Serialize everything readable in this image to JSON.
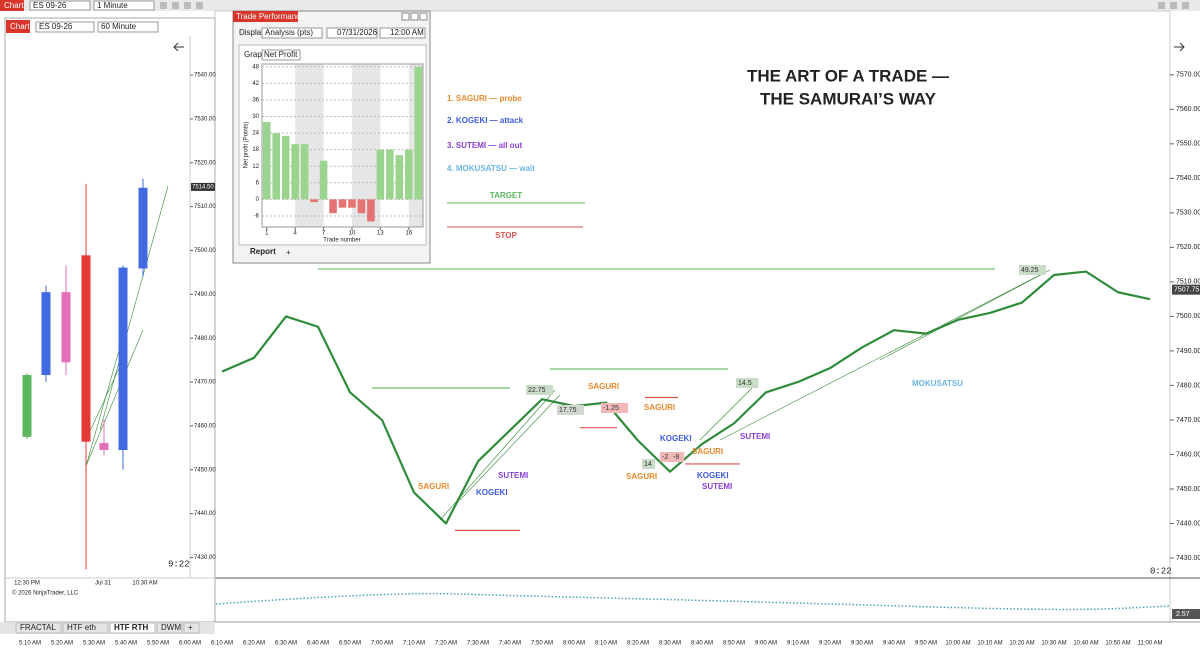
{
  "toolbar": {
    "tab": "Chart",
    "instrument": "ES 09-26",
    "interval": "1 Minute"
  },
  "mini_chart": {
    "tab": "Chart",
    "instrument": "ES 09-26",
    "interval": "60 Minute",
    "ylim": [
      7426,
      7548
    ],
    "yticks": [
      {
        "value": 7540,
        "label": "7540.00"
      },
      {
        "value": 7530,
        "label": "7530.00"
      },
      {
        "value": 7520,
        "label": "7520.00"
      },
      {
        "value": 7510,
        "label": "7510.00"
      },
      {
        "value": 7500,
        "label": "7500.00"
      },
      {
        "value": 7490,
        "label": "7490.00"
      },
      {
        "value": 7480,
        "label": "7480.00"
      },
      {
        "value": 7470,
        "label": "7470.00"
      },
      {
        "value": 7460,
        "label": "7460.00"
      },
      {
        "value": 7450,
        "label": "7450.00"
      },
      {
        "value": 7440,
        "label": "7440.00"
      },
      {
        "value": 7430,
        "label": "7430.00"
      }
    ],
    "candles": [
      {
        "open": 7457.5,
        "high": 7472,
        "low": 7457,
        "close": 7471.6,
        "color": "#5cb85c"
      },
      {
        "open": 7471.6,
        "high": 7492,
        "low": 7470,
        "close": 7490.5,
        "color": "#4169e1"
      },
      {
        "open": 7490.5,
        "high": 7496.6,
        "low": 7471.6,
        "close": 7474.5,
        "color": "#e46fb9"
      },
      {
        "open": 7498.9,
        "high": 7515.2,
        "low": 7427.3,
        "close": 7456.4,
        "color": "#e53935"
      },
      {
        "open": 7456.1,
        "high": 7461.4,
        "low": 7453.4,
        "close": 7454.5,
        "color": "#e46fb9"
      },
      {
        "open": 7454.5,
        "high": 7496.6,
        "low": 7450,
        "close": 7496.1,
        "color": "#4169e1"
      },
      {
        "open": 7495.9,
        "high": 7516.4,
        "low": 7494,
        "close": 7514.3,
        "color": "#4169e1"
      }
    ],
    "last_price": {
      "value": 7514.5,
      "label": "7514.50"
    },
    "time_labels": [
      "12:30 PM",
      "Jul 31",
      "10:30 AM"
    ],
    "clock": "9:22",
    "copyright": "© 2026 NinjaTrader, LLC"
  },
  "tabs": [
    "FRACTAL",
    "HTF eth",
    "HTF RTH",
    "DWM",
    "+"
  ],
  "active_tab": "HTF RTH",
  "time_axis": [
    "5:10 AM",
    "5:20 AM",
    "5:30 AM",
    "5:40 AM",
    "5:50 AM",
    "6:00 AM",
    "6:10 AM",
    "6:20 AM",
    "6:30 AM",
    "6:40 AM",
    "6:50 AM",
    "7:00 AM",
    "7:10 AM",
    "7:20 AM",
    "7:30 AM",
    "7:40 AM",
    "7:50 AM",
    "8:00 AM",
    "8:10 AM",
    "8:20 AM",
    "8:30 AM",
    "8:40 AM",
    "8:50 AM",
    "9:00 AM",
    "9:10 AM",
    "9:20 AM",
    "9:30 AM",
    "9:40 AM",
    "9:50 AM",
    "10:00 AM",
    "10:10 AM",
    "10:20 AM",
    "10:30 AM",
    "10:40 AM",
    "10:50 AM",
    "11:00 AM"
  ],
  "main_chart": {
    "title_lines": [
      "THE ART OF A TRADE —",
      "THE SAMURAI’S WAY"
    ],
    "ylim": [
      7424.2,
      7588.2
    ],
    "yticks": [
      {
        "value": 7570,
        "label": "7570.00"
      },
      {
        "value": 7560,
        "label": "7560.00"
      },
      {
        "value": 7550,
        "label": "7550.00"
      },
      {
        "value": 7540,
        "label": "7540.00"
      },
      {
        "value": 7530,
        "label": "7530.00"
      },
      {
        "value": 7520,
        "label": "7520.00"
      },
      {
        "value": 7510,
        "label": "7510.00"
      },
      {
        "value": 7500,
        "label": "7500.00"
      },
      {
        "value": 7490,
        "label": "7490.00"
      },
      {
        "value": 7480,
        "label": "7480.00"
      },
      {
        "value": 7470,
        "label": "7470.00"
      },
      {
        "value": 7460,
        "label": "7460.00"
      },
      {
        "value": 7450,
        "label": "7450.00"
      },
      {
        "value": 7440,
        "label": "7440.00"
      },
      {
        "value": 7430,
        "label": "7430.00"
      }
    ],
    "price_color": "#2e8b3a",
    "price": [
      null,
      null,
      null,
      null,
      null,
      null,
      7484,
      7488,
      7500,
      7497,
      7478,
      7470,
      7449,
      7440,
      7458,
      7467,
      7476,
      7474,
      7475,
      7464,
      7455,
      7463,
      7469,
      7478,
      7481,
      7485,
      7491,
      7496,
      7495,
      7499,
      7501,
      7504,
      7512,
      7513,
      7507,
      7505
    ],
    "last_price": {
      "value": 7507.75,
      "label": "7507.75"
    },
    "levels": [
      {
        "price": 7513.75,
        "color": "#6abf69"
      },
      {
        "price": 7479.25,
        "color": "#6abf69"
      },
      {
        "price": 7484.75,
        "color": "#6abf69"
      },
      {
        "price": 7438,
        "color": "#d9534f"
      },
      {
        "price": 7467.75,
        "color": "#d9534f"
      },
      {
        "price": 7476.5,
        "color": "#d9534f"
      },
      {
        "price": 7457.25,
        "color": "#d9534f"
      }
    ],
    "legend": [
      {
        "text": "1. SAGURI — probe",
        "color": "#e8892b"
      },
      {
        "text": "2. KOGEKI — attack",
        "color": "#3d5bd9"
      },
      {
        "text": "3. SUTEMI — all out",
        "color": "#8a3fd1"
      },
      {
        "text": "4. MOKUSATSU — wait",
        "color": "#6cb4e4"
      }
    ],
    "target": {
      "text": "TARGET",
      "color": "#5cb85c"
    },
    "stop": {
      "text": "STOP",
      "color": "#d9534f"
    },
    "annotations": [
      {
        "text": "SAGURI",
        "color": "#e8892b"
      },
      {
        "text": "KOGEKI",
        "color": "#3d5bd9"
      },
      {
        "text": "SUTEMI",
        "color": "#8a3fd1"
      },
      {
        "text": "22.75",
        "color": "#333333",
        "box": "#c8dcc8"
      },
      {
        "text": "17.75",
        "color": "#333333",
        "box": "#d0d8d0"
      },
      {
        "text": "SAGURI",
        "color": "#e8892b"
      },
      {
        "text": "-1.25",
        "color": "#333333",
        "box": "#f2b8b8"
      },
      {
        "text": "SAGURI",
        "color": "#e8892b"
      },
      {
        "text": "KOGEKI",
        "color": "#3d5bd9"
      },
      {
        "text": "14",
        "color": "#333333",
        "box": "#c8dcc8"
      },
      {
        "text": "-2",
        "color": "#333333",
        "box": "#f2b8b8"
      },
      {
        "text": "-8",
        "color": "#333333",
        "box": "#f2b8b8"
      },
      {
        "text": "SAGURI",
        "color": "#e8892b"
      },
      {
        "text": "SAGURI",
        "color": "#e8892b"
      },
      {
        "text": "KOGEKI",
        "color": "#3d5bd9"
      },
      {
        "text": "SUTEMI",
        "color": "#8a3fd1"
      },
      {
        "text": "14.5",
        "color": "#333333",
        "box": "#c8dcc8"
      },
      {
        "text": "SUTEMI",
        "color": "#8a3fd1"
      },
      {
        "text": "MOKUSATSU",
        "color": "#6cb4e4"
      },
      {
        "text": "49.25",
        "color": "#333333",
        "box": "#c8dcc8"
      }
    ],
    "clock": "0:22",
    "indicator_label": "2.57"
  },
  "trade_performance": {
    "title": "Trade Performance",
    "display_label": "Display",
    "display_value": "Analysis (pts)",
    "date": "07/31/2026",
    "time": "12:00 AM",
    "graph_label": "Graph",
    "graph_value": "Net Profit",
    "chart_data": {
      "type": "bar",
      "ylabel": "Net profit (Points)",
      "xlabel": "Trade number",
      "x": [
        1,
        2,
        3,
        4,
        5,
        6,
        7,
        8,
        9,
        10,
        11,
        12,
        13,
        14,
        15,
        16,
        17
      ],
      "values": [
        28,
        24,
        23,
        20,
        20,
        -1,
        14,
        -5,
        -3,
        -3,
        -5,
        -8,
        18,
        18,
        16,
        18,
        48
      ],
      "positive_color": "#9bd48f",
      "negative_color": "#e57373",
      "xlim": [
        0.5,
        17.5
      ],
      "ylim": [
        -10,
        49
      ],
      "xticks": [
        1,
        4,
        7,
        10,
        13,
        16
      ],
      "yticks": [
        48,
        42,
        36,
        30,
        24,
        18,
        12,
        6,
        0,
        -6
      ]
    },
    "tabs": [
      "Report",
      "+"
    ]
  }
}
